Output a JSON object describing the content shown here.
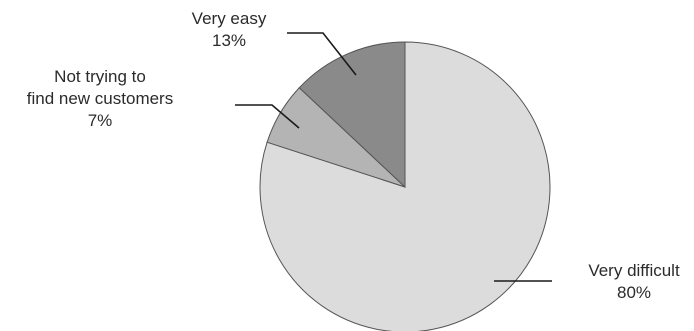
{
  "chart_data": {
    "type": "pie",
    "slices": [
      {
        "label": "Very difficult",
        "value": 80,
        "value_label": "80%",
        "color": "#dcdcdc"
      },
      {
        "label_lines": [
          "Not trying to",
          "find new customers"
        ],
        "value": 7,
        "value_label": "7%",
        "color": "#b4b4b4"
      },
      {
        "label": "Very easy",
        "value": 13,
        "value_label": "13%",
        "color": "#8a8a8a"
      }
    ],
    "start_angle": "12 o'clock",
    "direction": "clockwise",
    "legend": "none",
    "edge_color": "#555555",
    "leader_color": "#1a1a1a"
  }
}
